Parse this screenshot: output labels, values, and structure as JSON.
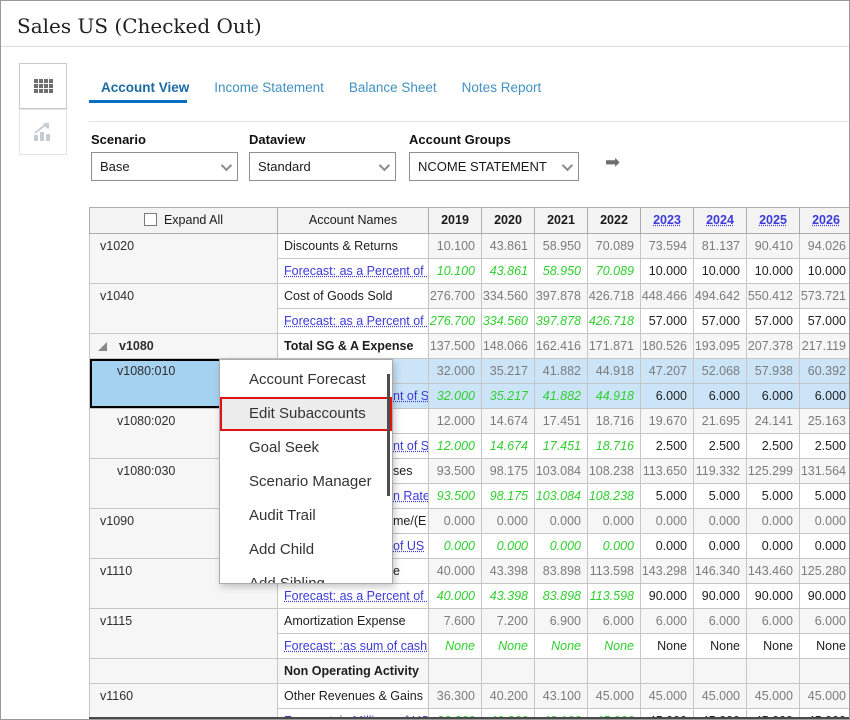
{
  "title": "Sales US (Checked Out)",
  "tabs": [
    {
      "label": "Account View",
      "active": true
    },
    {
      "label": "Income Statement",
      "active": false
    },
    {
      "label": "Balance Sheet",
      "active": false
    },
    {
      "label": "Notes Report",
      "active": false
    }
  ],
  "icons": {
    "sidebar_grid": "table-grid-icon",
    "sidebar_chart": "trend-chart-icon",
    "go": "right-arrow-icon",
    "dropdown": "chevron-down-icon",
    "expand_node": "expanded-triangle-icon"
  },
  "filters": {
    "scenario": {
      "label": "Scenario",
      "value": "Base"
    },
    "dataview": {
      "label": "Dataview",
      "value": "Standard"
    },
    "account_groups": {
      "label": "Account Groups",
      "value": "NCOME STATEMENT"
    }
  },
  "table": {
    "expand_all_label": "Expand All",
    "account_names_label": "Account Names",
    "years": [
      "2019",
      "2020",
      "2021",
      "2022",
      "2023",
      "2024",
      "2025",
      "2026"
    ],
    "link_years_from_index": 4,
    "rows": [
      {
        "type": "value",
        "code": "v1020",
        "name": "Discounts & Returns",
        "values": [
          "10.100",
          "43.861",
          "58.950",
          "70.089",
          "73.594",
          "81.137",
          "90.410",
          "94.026"
        ]
      },
      {
        "type": "forecast",
        "link": "Forecast: as a Percent of F",
        "values": [
          "10.100",
          "43.861",
          "58.950",
          "70.089",
          "10.000",
          "10.000",
          "10.000",
          "10.000"
        ]
      },
      {
        "type": "value",
        "code": "v1040",
        "name": "Cost of Goods Sold",
        "values": [
          "276.700",
          "334.560",
          "397.878",
          "426.718",
          "448.466",
          "494.642",
          "550.412",
          "573.721"
        ]
      },
      {
        "type": "forecast",
        "link": "Forecast: as a Percent of S",
        "values": [
          "276.700",
          "334.560",
          "397.878",
          "426.718",
          "57.000",
          "57.000",
          "57.000",
          "57.000"
        ]
      },
      {
        "type": "value",
        "code": "v1080",
        "single": true,
        "bold": true,
        "triangle": true,
        "name": "Total SG & A Expense",
        "name_bold": true,
        "values": [
          "137.500",
          "148.066",
          "162.416",
          "171.871",
          "180.526",
          "193.095",
          "207.378",
          "217.119"
        ]
      },
      {
        "type": "value",
        "code": "v1080:010",
        "indent": true,
        "selected": true,
        "name": "",
        "values": [
          "32.000",
          "35.217",
          "41.882",
          "44.918",
          "47.207",
          "52.068",
          "57.938",
          "60.392"
        ]
      },
      {
        "type": "forecast",
        "selected": true,
        "link": "nt of S",
        "fragment": true,
        "values": [
          "32.000",
          "35.217",
          "41.882",
          "44.918",
          "6.000",
          "6.000",
          "6.000",
          "6.000"
        ]
      },
      {
        "type": "value",
        "code": "v1080:020",
        "indent": true,
        "name": "",
        "values": [
          "12.000",
          "14.674",
          "17.451",
          "18.716",
          "19.670",
          "21.695",
          "24.141",
          "25.163"
        ]
      },
      {
        "type": "forecast",
        "link": "nt of S",
        "fragment": true,
        "values": [
          "12.000",
          "14.674",
          "17.451",
          "18.716",
          "2.500",
          "2.500",
          "2.500",
          "2.500"
        ]
      },
      {
        "type": "value",
        "code": "v1080:030",
        "indent": true,
        "name": "ses",
        "fragment": true,
        "values": [
          "93.500",
          "98.175",
          "103.084",
          "108.238",
          "113.650",
          "119.332",
          "125.299",
          "131.564"
        ]
      },
      {
        "type": "forecast",
        "link": "n Rate",
        "fragment": true,
        "values": [
          "93.500",
          "98.175",
          "103.084",
          "108.238",
          "5.000",
          "5.000",
          "5.000",
          "5.000"
        ]
      },
      {
        "type": "value",
        "code": "v1090",
        "name": "me/(E",
        "fragment": true,
        "values": [
          "0.000",
          "0.000",
          "0.000",
          "0.000",
          "0.000",
          "0.000",
          "0.000",
          "0.000"
        ]
      },
      {
        "type": "forecast",
        "link": "of US",
        "fragment": true,
        "values": [
          "0.000",
          "0.000",
          "0.000",
          "0.000",
          "0.000",
          "0.000",
          "0.000",
          "0.000"
        ]
      },
      {
        "type": "value",
        "code": "v1110",
        "name": "e",
        "fragment": true,
        "values": [
          "40.000",
          "43.398",
          "83.898",
          "113.598",
          "143.298",
          "146.340",
          "143.460",
          "125.280"
        ]
      },
      {
        "type": "forecast",
        "link": "Forecast: as a Percent of D",
        "values": [
          "40.000",
          "43.398",
          "83.898",
          "113.598",
          "90.000",
          "90.000",
          "90.000",
          "90.000"
        ]
      },
      {
        "type": "value",
        "code": "v1115",
        "name": "Amortization Expense",
        "values": [
          "7.600",
          "7.200",
          "6.900",
          "6.000",
          "6.000",
          "6.000",
          "6.000",
          "6.000"
        ]
      },
      {
        "type": "forecast",
        "link": "Forecast: :as sum of cash",
        "values": [
          "None",
          "None",
          "None",
          "None",
          "None",
          "None",
          "None",
          "None"
        ]
      },
      {
        "type": "group",
        "name": "Non Operating Activity"
      },
      {
        "type": "value",
        "code": "v1160",
        "name": "Other Revenues & Gains",
        "values": [
          "36.300",
          "40.200",
          "43.100",
          "45.000",
          "45.000",
          "45.000",
          "45.000",
          "45.000"
        ]
      },
      {
        "type": "forecast",
        "link": "Forecast: in Millions of US",
        "values": [
          "36.300",
          "40.200",
          "43.100",
          "45.000",
          "45.000",
          "45.000",
          "45.000",
          "45.000"
        ]
      }
    ]
  },
  "context_menu": {
    "items": [
      {
        "label": "Account Forecast",
        "highlighted": false
      },
      {
        "label": "Edit Subaccounts",
        "highlighted": true
      },
      {
        "label": "Goal Seek",
        "highlighted": false
      },
      {
        "label": "Scenario Manager",
        "highlighted": false
      },
      {
        "label": "Audit Trail",
        "highlighted": false
      },
      {
        "label": "Add Child",
        "highlighted": false
      },
      {
        "label": "Add Sibling",
        "highlighted": false,
        "partial": true
      }
    ]
  },
  "colors": {
    "accent_blue": "#0a6fc2",
    "link_blue": "#3b3bd9",
    "positive_green": "#2fcf2f",
    "selection_row_blue": "#cbe4f8",
    "selection_code_blue": "#a6d2f2",
    "highlight_red": "#e01212"
  }
}
